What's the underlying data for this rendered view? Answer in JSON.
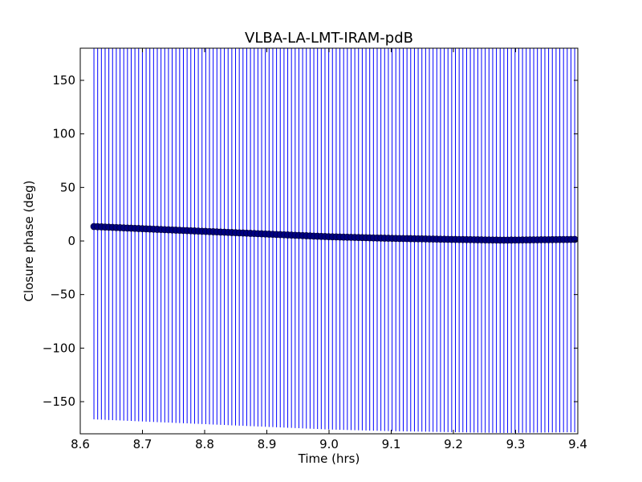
{
  "chart_data": {
    "type": "scatter",
    "title": "VLBA-LA-LMT-IRAM-pdB",
    "xlabel": "Time (hrs)",
    "ylabel": "Closure phase (deg)",
    "xlim": [
      8.6,
      9.4
    ],
    "ylim": [
      -180,
      180
    ],
    "x_ticks": [
      8.6,
      8.7,
      8.8,
      8.9,
      9.0,
      9.1,
      9.2,
      9.3,
      9.4
    ],
    "x_tick_labels": [
      "8.6",
      "8.7",
      "8.8",
      "8.9",
      "9.0",
      "9.1",
      "9.2",
      "9.3",
      "9.4"
    ],
    "y_ticks": [
      -150,
      -100,
      -50,
      0,
      50,
      100,
      150
    ],
    "y_tick_labels": [
      "−150",
      "−100",
      "−50",
      "0",
      "50",
      "100",
      "150"
    ],
    "grid": false,
    "colors": {
      "marker": "#000080",
      "errorbar": "#0000ff"
    },
    "series": [
      {
        "x_start": 8.622,
        "x_end": 9.395,
        "n_points": 130,
        "y_keypoints": [
          {
            "x": 8.622,
            "y": 13.5
          },
          {
            "x": 8.7,
            "y": 11.5
          },
          {
            "x": 8.8,
            "y": 9.0
          },
          {
            "x": 8.9,
            "y": 6.5
          },
          {
            "x": 9.0,
            "y": 4.0
          },
          {
            "x": 9.1,
            "y": 2.5
          },
          {
            "x": 9.2,
            "y": 1.5
          },
          {
            "x": 9.28,
            "y": 0.8
          },
          {
            "x": 9.395,
            "y": 1.5
          }
        ],
        "yerr": 180
      }
    ]
  }
}
